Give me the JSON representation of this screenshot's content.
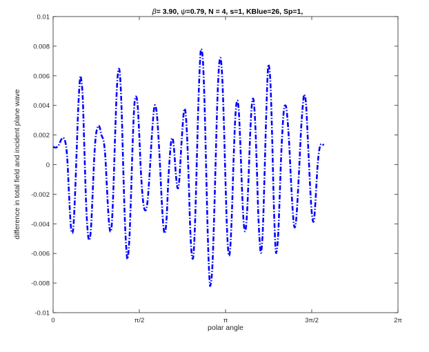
{
  "chart_data": {
    "type": "line",
    "title_parts": {
      "beta_symbol": "β",
      "beta_rest": "= 3.90, ",
      "psi_symbol": "ψ",
      "psi_rest": "=0.79, N = 4, s=1, KBlue=26, Sp=1,"
    },
    "xlabel": "polar angle",
    "ylabel": "difference in total field and incident plane wave",
    "xlim": [
      0,
      6.2832
    ],
    "ylim": [
      -0.01,
      0.01
    ],
    "x_ticks": [
      {
        "value": 0,
        "label": "0"
      },
      {
        "value": 1.5708,
        "label": "π/2"
      },
      {
        "value": 3.1416,
        "label": "π"
      },
      {
        "value": 4.7124,
        "label": "3π/2"
      },
      {
        "value": 6.2832,
        "label": "2π"
      }
    ],
    "y_ticks": [
      {
        "value": -0.01,
        "label": "-0.01"
      },
      {
        "value": -0.008,
        "label": "-0.008"
      },
      {
        "value": -0.006,
        "label": "-0.006"
      },
      {
        "value": -0.004,
        "label": "-0.004"
      },
      {
        "value": -0.002,
        "label": "-0.002"
      },
      {
        "value": 0,
        "label": "0"
      },
      {
        "value": 0.002,
        "label": "0.002"
      },
      {
        "value": 0.004,
        "label": "0.004"
      },
      {
        "value": 0.006,
        "label": "0.006"
      },
      {
        "value": 0.008,
        "label": "0.008"
      },
      {
        "value": 0.01,
        "label": "0.01"
      }
    ],
    "grid": false,
    "series": [
      {
        "color": "#0000ff",
        "style": "dash-dot",
        "points": [
          [
            0.0,
            0.0012
          ],
          [
            0.05,
            0.00115
          ],
          [
            0.1,
            0.0013
          ],
          [
            0.15,
            0.0017
          ],
          [
            0.19,
            0.0018
          ],
          [
            0.23,
            0.0014
          ],
          [
            0.26,
            0.0003
          ],
          [
            0.29,
            -0.002
          ],
          [
            0.32,
            -0.004
          ],
          [
            0.345,
            -0.0046
          ],
          [
            0.37,
            -0.0042
          ],
          [
            0.4,
            -0.002
          ],
          [
            0.43,
            0.001
          ],
          [
            0.46,
            0.004
          ],
          [
            0.49,
            0.0058
          ],
          [
            0.51,
            0.0058
          ],
          [
            0.54,
            0.0045
          ],
          [
            0.57,
            0.001
          ],
          [
            0.6,
            -0.0025
          ],
          [
            0.63,
            -0.0045
          ],
          [
            0.66,
            -0.0051
          ],
          [
            0.69,
            -0.0043
          ],
          [
            0.72,
            -0.002
          ],
          [
            0.75,
            0.0005
          ],
          [
            0.78,
            0.002
          ],
          [
            0.82,
            0.0026
          ],
          [
            0.85,
            0.0025
          ],
          [
            0.88,
            0.002
          ],
          [
            0.92,
            0.0016
          ],
          [
            0.95,
            0.0006
          ],
          [
            0.98,
            -0.0015
          ],
          [
            1.01,
            -0.0035
          ],
          [
            1.04,
            -0.0045
          ],
          [
            1.07,
            -0.004
          ],
          [
            1.1,
            -0.0015
          ],
          [
            1.13,
            0.002
          ],
          [
            1.16,
            0.005
          ],
          [
            1.19,
            0.0064
          ],
          [
            1.22,
            0.006
          ],
          [
            1.25,
            0.0035
          ],
          [
            1.28,
            -0.0005
          ],
          [
            1.31,
            -0.004
          ],
          [
            1.34,
            -0.006
          ],
          [
            1.36,
            -0.0063
          ],
          [
            1.39,
            -0.005
          ],
          [
            1.42,
            -0.002
          ],
          [
            1.45,
            0.0015
          ],
          [
            1.48,
            0.004
          ],
          [
            1.51,
            0.0046
          ],
          [
            1.54,
            0.004
          ],
          [
            1.57,
            0.002
          ],
          [
            1.6,
            -0.0005
          ],
          [
            1.64,
            -0.0025
          ],
          [
            1.68,
            -0.0031
          ],
          [
            1.72,
            -0.0025
          ],
          [
            1.76,
            -0.0005
          ],
          [
            1.8,
            0.002
          ],
          [
            1.84,
            0.0038
          ],
          [
            1.87,
            0.0039
          ],
          [
            1.9,
            0.003
          ],
          [
            1.94,
            0.0005
          ],
          [
            1.98,
            -0.0025
          ],
          [
            2.01,
            -0.0042
          ],
          [
            2.04,
            -0.0046
          ],
          [
            2.07,
            -0.0035
          ],
          [
            2.1,
            -0.001
          ],
          [
            2.14,
            0.0012
          ],
          [
            2.17,
            0.0018
          ],
          [
            2.2,
            0.0012
          ],
          [
            2.24,
            -0.0008
          ],
          [
            2.27,
            -0.0016
          ],
          [
            2.3,
            -0.001
          ],
          [
            2.34,
            0.0015
          ],
          [
            2.38,
            0.0035
          ],
          [
            2.41,
            0.0036
          ],
          [
            2.44,
            0.002
          ],
          [
            2.47,
            -0.001
          ],
          [
            2.5,
            -0.0045
          ],
          [
            2.53,
            -0.0062
          ],
          [
            2.56,
            -0.006
          ],
          [
            2.59,
            -0.0035
          ],
          [
            2.62,
            0.0005
          ],
          [
            2.65,
            0.0045
          ],
          [
            2.68,
            0.0072
          ],
          [
            2.7,
            0.0078
          ],
          [
            2.73,
            0.007
          ],
          [
            2.76,
            0.004
          ],
          [
            2.79,
            -0.0005
          ],
          [
            2.82,
            -0.005
          ],
          [
            2.85,
            -0.0078
          ],
          [
            2.87,
            -0.0081
          ],
          [
            2.9,
            -0.007
          ],
          [
            2.93,
            -0.004
          ],
          [
            2.96,
            0.0
          ],
          [
            2.99,
            0.004
          ],
          [
            3.02,
            0.0065
          ],
          [
            3.05,
            0.0072
          ],
          [
            3.08,
            0.006
          ],
          [
            3.11,
            0.003
          ],
          [
            3.14,
            -0.001
          ],
          [
            3.17,
            -0.0045
          ],
          [
            3.2,
            -0.0061
          ],
          [
            3.23,
            -0.0055
          ],
          [
            3.26,
            -0.003
          ],
          [
            3.29,
            0.0005
          ],
          [
            3.32,
            0.0032
          ],
          [
            3.35,
            0.0043
          ],
          [
            3.38,
            0.0038
          ],
          [
            3.41,
            0.0015
          ],
          [
            3.44,
            -0.0015
          ],
          [
            3.47,
            -0.0038
          ],
          [
            3.5,
            -0.0045
          ],
          [
            3.53,
            -0.0035
          ],
          [
            3.56,
            -0.001
          ],
          [
            3.59,
            0.002
          ],
          [
            3.62,
            0.004
          ],
          [
            3.65,
            0.0044
          ],
          [
            3.68,
            0.003
          ],
          [
            3.71,
            0.0
          ],
          [
            3.74,
            -0.0035
          ],
          [
            3.77,
            -0.0055
          ],
          [
            3.79,
            -0.0059
          ],
          [
            3.82,
            -0.0045
          ],
          [
            3.85,
            -0.001
          ],
          [
            3.88,
            0.003
          ],
          [
            3.91,
            0.0062
          ],
          [
            3.93,
            0.0067
          ],
          [
            3.96,
            0.0055
          ],
          [
            3.99,
            0.002
          ],
          [
            4.02,
            -0.0025
          ],
          [
            4.05,
            -0.0055
          ],
          [
            4.07,
            -0.0059
          ],
          [
            4.1,
            -0.0048
          ],
          [
            4.13,
            -0.002
          ],
          [
            4.16,
            0.001
          ],
          [
            4.2,
            0.0035
          ],
          [
            4.23,
            0.004
          ],
          [
            4.26,
            0.0035
          ],
          [
            4.3,
            0.0015
          ],
          [
            4.34,
            -0.0015
          ],
          [
            4.38,
            -0.0038
          ],
          [
            4.41,
            -0.0042
          ],
          [
            4.44,
            -0.0032
          ],
          [
            4.48,
            -0.0005
          ],
          [
            4.52,
            0.0025
          ],
          [
            4.56,
            0.0044
          ],
          [
            4.58,
            0.0047
          ],
          [
            4.61,
            0.004
          ],
          [
            4.65,
            0.001
          ],
          [
            4.69,
            -0.002
          ],
          [
            4.72,
            -0.0035
          ],
          [
            4.75,
            -0.0038
          ],
          [
            4.78,
            -0.0025
          ],
          [
            4.82,
            0.0
          ],
          [
            4.86,
            0.0012
          ],
          [
            4.9,
            0.0014
          ],
          [
            4.93,
            0.0013
          ]
        ]
      }
    ]
  }
}
